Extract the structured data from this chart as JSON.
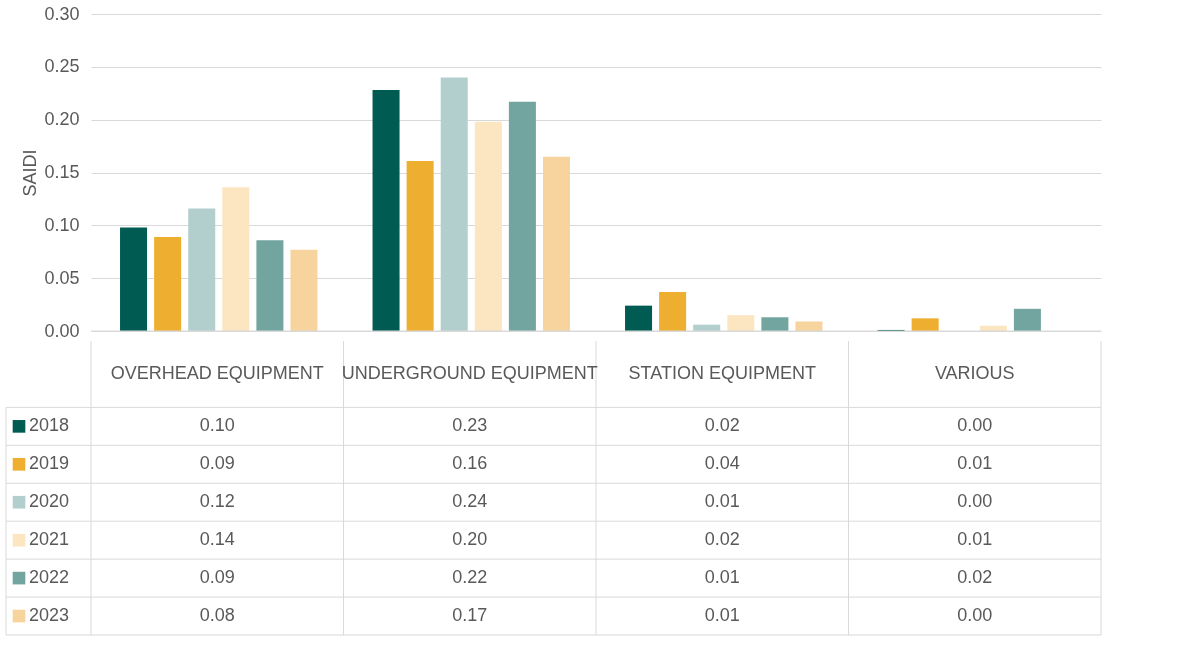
{
  "chart_data": {
    "type": "bar",
    "ylabel": "SAIDI",
    "categories": [
      "OVERHEAD EQUIPMENT",
      "UNDERGROUND EQUIPMENT",
      "STATION EQUIPMENT",
      "VARIOUS"
    ],
    "series": [
      {
        "name": "2018",
        "color": "#005c53",
        "values": [
          0.098,
          0.228,
          0.024,
          0.001
        ],
        "value_labels": [
          "0.10",
          "0.23",
          "0.02",
          "0.00"
        ]
      },
      {
        "name": "2019",
        "color": "#eeae30",
        "values": [
          0.089,
          0.161,
          0.037,
          0.012
        ],
        "value_labels": [
          "0.09",
          "0.16",
          "0.04",
          "0.01"
        ]
      },
      {
        "name": "2020",
        "color": "#b3cfcd",
        "values": [
          0.116,
          0.24,
          0.006,
          0.0
        ],
        "value_labels": [
          "0.12",
          "0.24",
          "0.01",
          "0.00"
        ]
      },
      {
        "name": "2021",
        "color": "#fce6c1",
        "values": [
          0.136,
          0.198,
          0.015,
          0.005
        ],
        "value_labels": [
          "0.14",
          "0.20",
          "0.02",
          "0.01"
        ]
      },
      {
        "name": "2022",
        "color": "#72a59f",
        "values": [
          0.086,
          0.217,
          0.013,
          0.021
        ],
        "value_labels": [
          "0.09",
          "0.22",
          "0.01",
          "0.02"
        ]
      },
      {
        "name": "2023",
        "color": "#f7d49e",
        "values": [
          0.077,
          0.165,
          0.009,
          0.0
        ],
        "value_labels": [
          "0.08",
          "0.17",
          "0.01",
          "0.00"
        ]
      }
    ],
    "ylim": [
      0,
      0.3
    ],
    "yticks": [
      {
        "value": 0,
        "label": "0.00"
      },
      {
        "value": 0.05,
        "label": "0.05"
      },
      {
        "value": 0.1,
        "label": "0.10"
      },
      {
        "value": 0.15,
        "label": "0.15"
      },
      {
        "value": 0.2,
        "label": "0.20"
      },
      {
        "value": 0.25,
        "label": "0.25"
      },
      {
        "value": 0.3,
        "label": "0.30"
      }
    ],
    "grid": "y",
    "legend": "bottom"
  }
}
